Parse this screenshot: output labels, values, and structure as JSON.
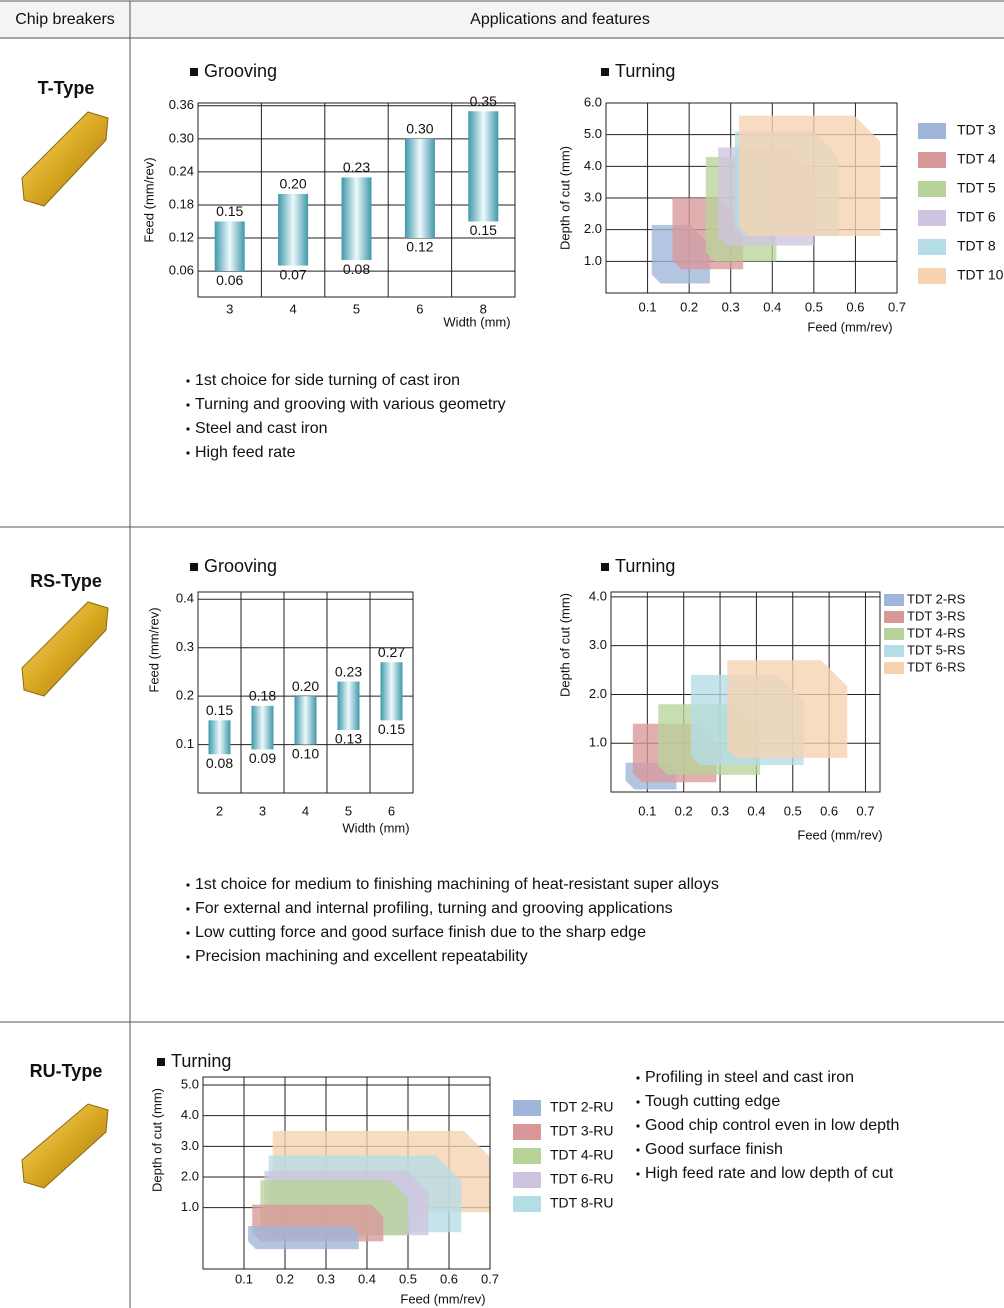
{
  "header": {
    "chip_breakers": "Chip breakers",
    "applications": "Applications and features"
  },
  "rows": [
    {
      "name": "T-Type",
      "charts": [
        {
          "type": "range_bar",
          "title": "Grooving",
          "x_label": "Width (mm)",
          "y_label": "Feed (mm/rev)",
          "categories": [
            "3",
            "4",
            "5",
            "6",
            "8"
          ],
          "low": {
            "values": [
              0.06,
              0.07,
              0.08,
              0.12,
              0.15
            ],
            "value_labels": [
              "0.06",
              "0.07",
              "0.08",
              "0.12",
              "0.15"
            ]
          },
          "high": {
            "values": [
              0.15,
              0.2,
              0.23,
              0.3,
              0.35
            ],
            "value_labels": [
              "0.15",
              "0.20",
              "0.23",
              "0.30",
              "0.35"
            ]
          },
          "ylim": [
            0.013,
            0.365
          ],
          "yticks": [
            0.06,
            0.12,
            0.18,
            0.24,
            {
              "value": 0.3,
              "label": "0.30"
            },
            0.36
          ],
          "grid": true
        },
        {
          "type": "area",
          "title": "Turning",
          "x_label": "Feed (mm/rev)",
          "y_label": "Depth of cut (mm)",
          "xlim": [
            0,
            0.7
          ],
          "xticks": [
            0.1,
            0.2,
            0.3,
            0.4,
            0.5,
            0.6,
            0.7
          ],
          "ylim": [
            0,
            6.0
          ],
          "yticks": [
            {
              "value": 1,
              "label": "1.0"
            },
            {
              "value": 2,
              "label": "2.0"
            },
            {
              "value": 3,
              "label": "3.0"
            },
            {
              "value": 4,
              "label": "4.0"
            },
            {
              "value": 5,
              "label": "5.0"
            },
            {
              "value": 6,
              "label": "6.0"
            }
          ],
          "grid": true,
          "series": [
            {
              "name": "TDT 3",
              "color": "#9fb5d9",
              "feed": [
                0.11,
                0.25
              ],
              "depth": [
                0.3,
                2.15
              ]
            },
            {
              "name": "TDT 4",
              "color": "#d89898",
              "feed": [
                0.16,
                0.33
              ],
              "depth": [
                0.75,
                3.0
              ]
            },
            {
              "name": "TDT 5",
              "color": "#b8d39a",
              "feed": [
                0.24,
                0.41
              ],
              "depth": [
                1.0,
                4.3
              ]
            },
            {
              "name": "TDT 6",
              "color": "#cfc4e0",
              "feed": [
                0.27,
                0.5
              ],
              "depth": [
                1.5,
                4.6
              ]
            },
            {
              "name": "TDT 8",
              "color": "#b5dde6",
              "feed": [
                0.31,
                0.56
              ],
              "depth": [
                1.8,
                5.1
              ]
            },
            {
              "name": "TDT 10",
              "color": "#f6d2b1",
              "feed": [
                0.32,
                0.66
              ],
              "depth": [
                1.8,
                5.6
              ]
            }
          ]
        }
      ],
      "features": [
        "1st choice for side turning of cast iron",
        "Turning and grooving with various geometry",
        "Steel and cast iron",
        "High feed rate"
      ]
    },
    {
      "name": "RS-Type",
      "charts": [
        {
          "type": "range_bar",
          "title": "Grooving",
          "x_label": "Width (mm)",
          "y_label": "Feed (mm/rev)",
          "categories": [
            "2",
            "3",
            "4",
            "5",
            "6"
          ],
          "low": {
            "values": [
              0.08,
              0.09,
              0.1,
              0.13,
              0.15
            ],
            "value_labels": [
              "0.08",
              "0.09",
              "0.10",
              "0.13",
              "0.15"
            ]
          },
          "high": {
            "values": [
              0.15,
              0.18,
              0.2,
              0.23,
              0.27
            ],
            "value_labels": [
              "0.15",
              "0.18",
              "0.20",
              "0.23",
              "0.27"
            ]
          },
          "ylim": [
            0,
            0.415
          ],
          "yticks": [
            0.1,
            0.2,
            0.3,
            0.4
          ],
          "grid": true
        },
        {
          "type": "area",
          "title": "Turning",
          "x_label": "Feed (mm/rev)",
          "y_label": "Depth of cut (mm)",
          "xlim": [
            0,
            0.74
          ],
          "xticks": [
            0.1,
            0.2,
            0.3,
            0.4,
            0.5,
            0.6,
            0.7
          ],
          "ylim": [
            0,
            4.1
          ],
          "yticks": [
            {
              "value": 1,
              "label": "1.0"
            },
            {
              "value": 2,
              "label": "2.0"
            },
            {
              "value": 3,
              "label": "3.0"
            },
            {
              "value": 4,
              "label": "4.0"
            }
          ],
          "grid": true,
          "series": [
            {
              "name": "TDT 2-RS",
              "color": "#9fb5d9",
              "feed": [
                0.04,
                0.18
              ],
              "depth": [
                0.05,
                0.6
              ]
            },
            {
              "name": "TDT 3-RS",
              "color": "#d89898",
              "feed": [
                0.06,
                0.29
              ],
              "depth": [
                0.2,
                1.4
              ]
            },
            {
              "name": "TDT 4-RS",
              "color": "#b8d39a",
              "feed": [
                0.13,
                0.41
              ],
              "depth": [
                0.35,
                1.8
              ]
            },
            {
              "name": "TDT 5-RS",
              "color": "#b5dde6",
              "feed": [
                0.22,
                0.53
              ],
              "depth": [
                0.55,
                2.4
              ]
            },
            {
              "name": "TDT 6-RS",
              "color": "#f6d2b1",
              "feed": [
                0.32,
                0.65
              ],
              "depth": [
                0.7,
                2.7
              ]
            }
          ]
        }
      ],
      "features": [
        "1st choice for medium to finishing machining of heat-resistant super alloys",
        "For external and internal profiling, turning and grooving applications",
        "Low cutting force and good surface finish due to the sharp edge",
        "Precision machining and excellent repeatability"
      ]
    },
    {
      "name": "RU-Type",
      "charts": [
        {
          "type": "area",
          "title": "Turning",
          "x_label": "Feed (mm/rev)",
          "y_label": "Depth of cut (mm)",
          "xlim": [
            0,
            0.7
          ],
          "xticks": [
            0.1,
            0.2,
            0.3,
            0.4,
            0.5,
            0.6,
            0.7
          ],
          "ylim": [
            -1.0,
            5.26
          ],
          "yticks": [
            {
              "value": 1,
              "label": "1.0"
            },
            {
              "value": 2,
              "label": "2.0"
            },
            {
              "value": 3,
              "label": "3.0"
            },
            {
              "value": 4,
              "label": "4.0"
            },
            {
              "value": 5,
              "label": "5.0"
            }
          ],
          "grid": true,
          "series": [
            {
              "name": null,
              "color": "#f6d2b1",
              "feed": [
                0.17,
                0.7
              ],
              "depth": [
                0.85,
                3.5
              ]
            },
            {
              "name": "TDT 8-RU",
              "color": "#b5dde6",
              "feed": [
                0.16,
                0.63
              ],
              "depth": [
                0.2,
                2.7
              ]
            },
            {
              "name": "TDT 6-RU",
              "color": "#cfc4e0",
              "feed": [
                0.15,
                0.55
              ],
              "depth": [
                0.1,
                2.2
              ]
            },
            {
              "name": "TDT 4-RU",
              "color": "#b8d39a",
              "feed": [
                0.14,
                0.5
              ],
              "depth": [
                0.1,
                1.9
              ]
            },
            {
              "name": "TDT 3-RU",
              "color": "#d89898",
              "feed": [
                0.12,
                0.44
              ],
              "depth": [
                -0.1,
                1.1
              ]
            },
            {
              "name": "TDT 2-RU",
              "color": "#9fb5d9",
              "feed": [
                0.11,
                0.38
              ],
              "depth": [
                -0.35,
                0.4
              ]
            }
          ]
        }
      ],
      "features": [
        "Profiling in steel and cast iron",
        "Tough cutting edge",
        "Good chip control even in low depth",
        "Good surface finish",
        "High feed rate and low depth of cut"
      ]
    }
  ]
}
